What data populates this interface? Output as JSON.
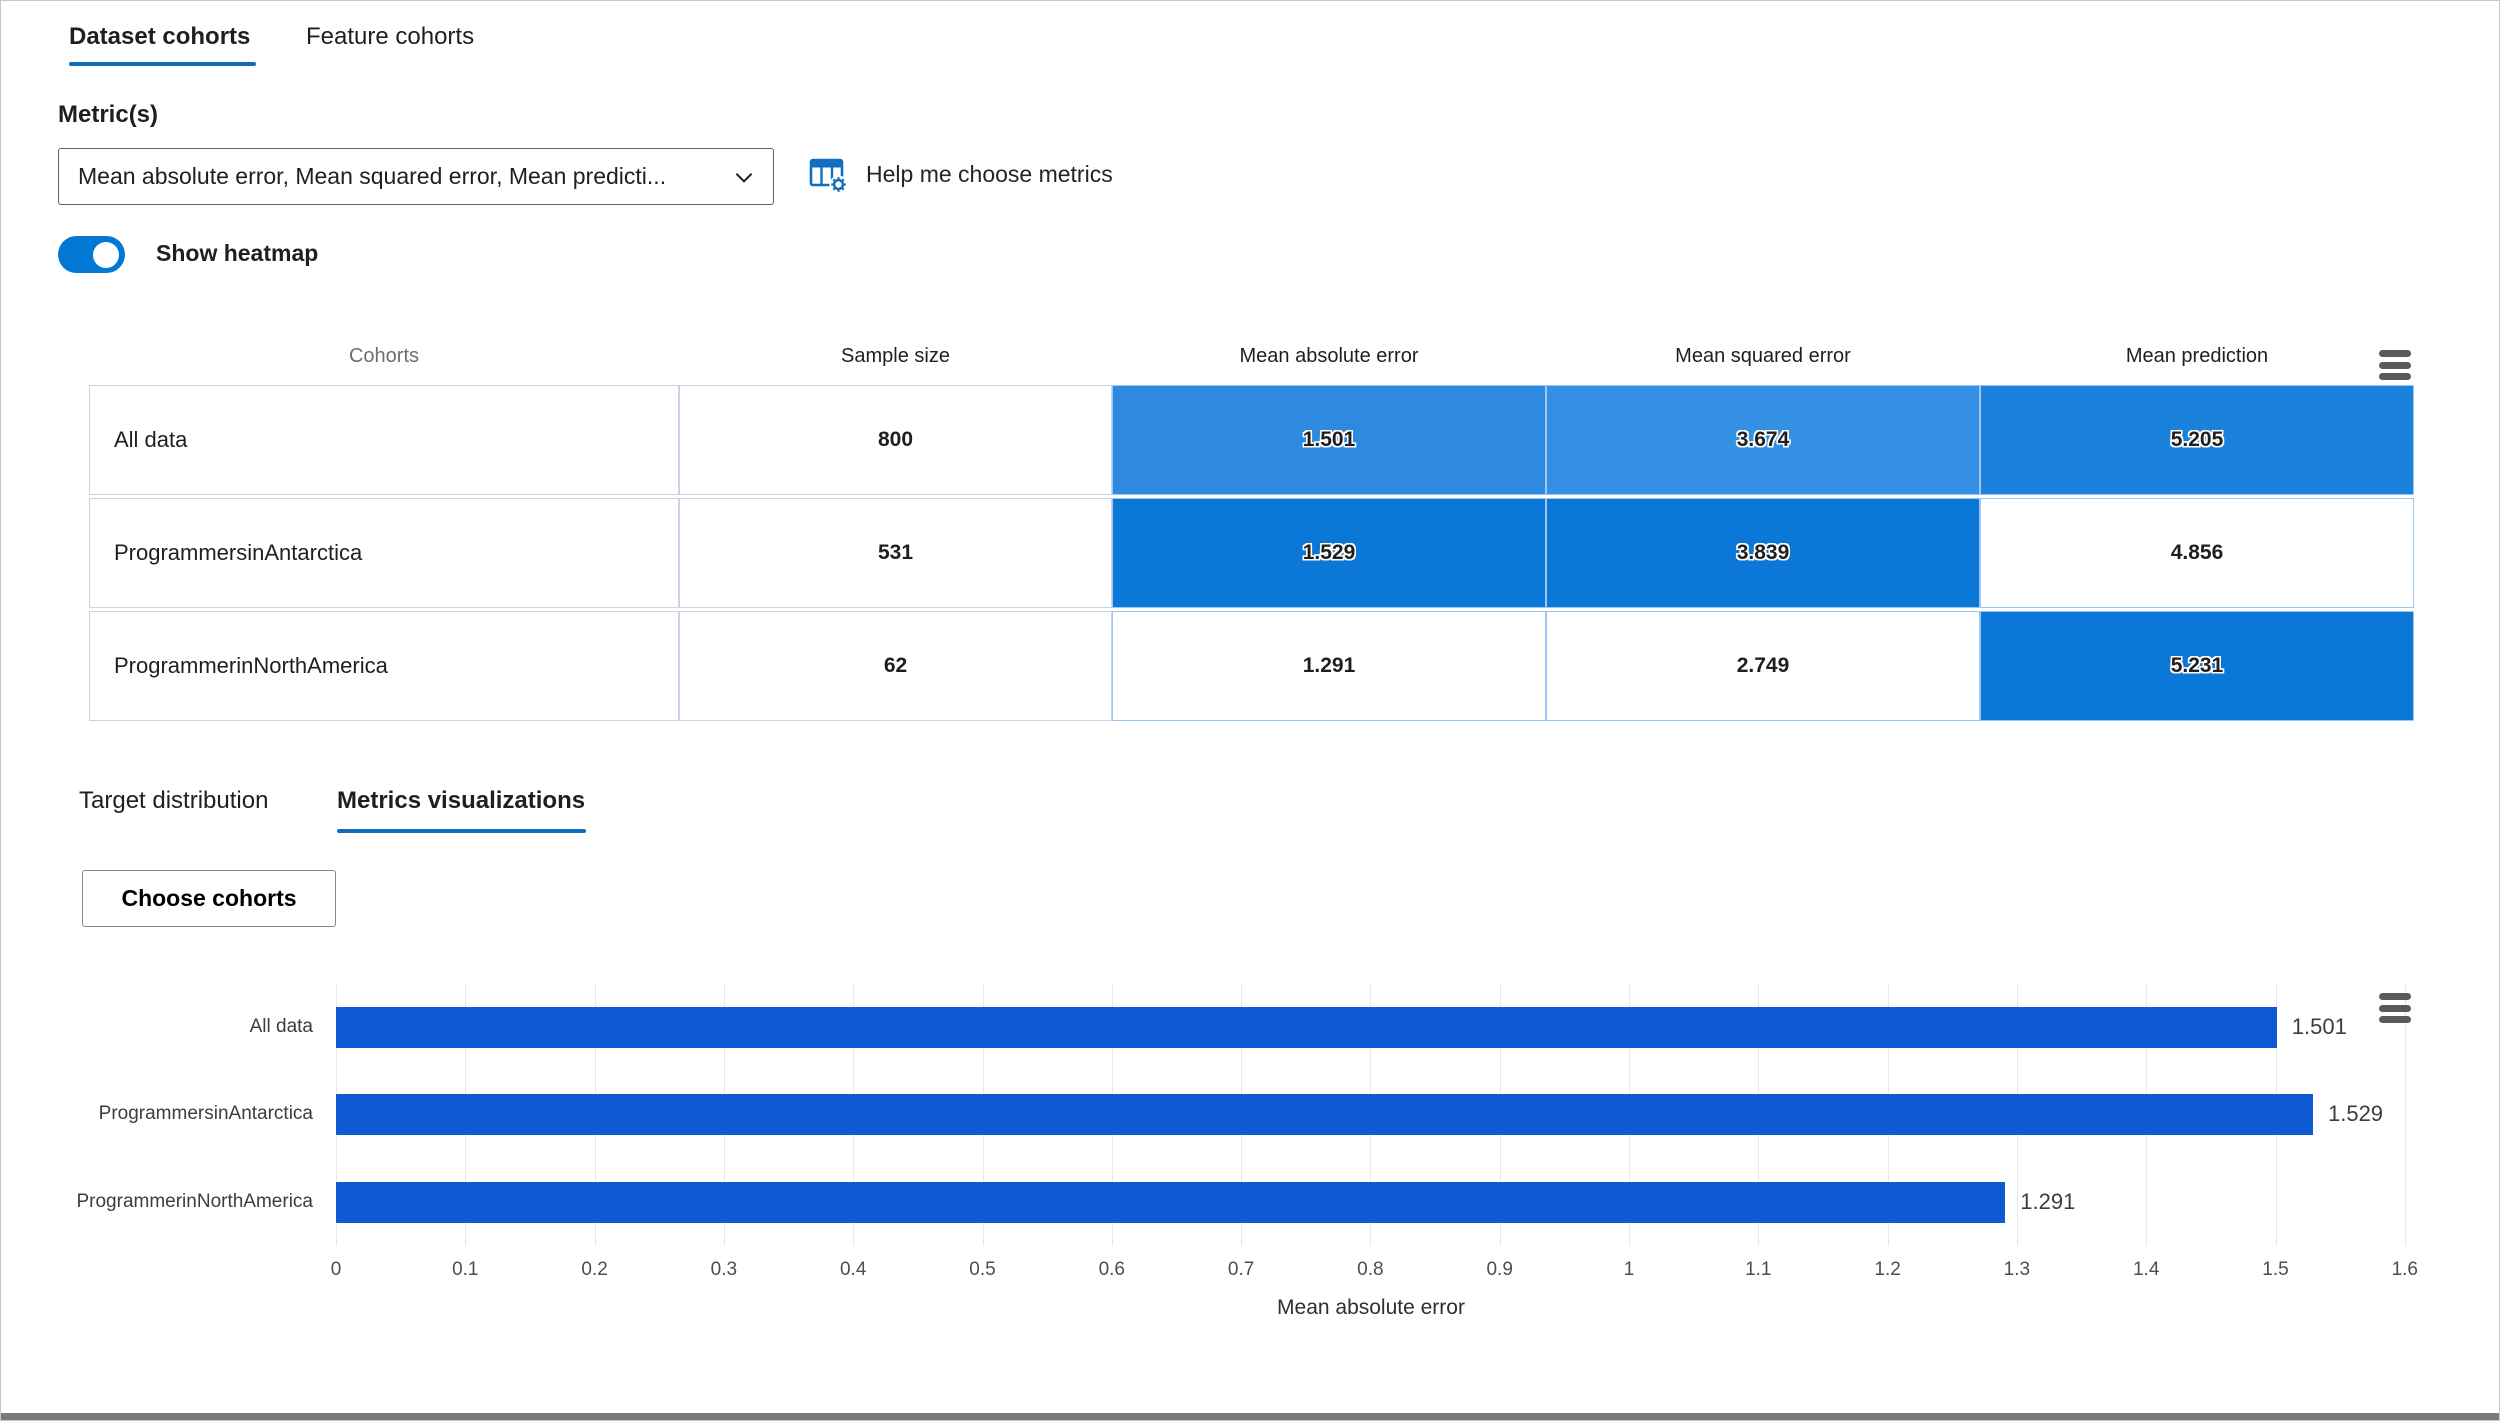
{
  "tabs_top": {
    "items": [
      {
        "label": "Dataset cohorts",
        "active": true
      },
      {
        "label": "Feature cohorts",
        "active": false
      }
    ]
  },
  "metrics": {
    "label": "Metric(s)",
    "value": "Mean absolute error, Mean squared error, Mean predicti...",
    "help_label": "Help me choose metrics"
  },
  "heatmap_toggle": {
    "label": "Show heatmap",
    "on": true
  },
  "table": {
    "columns": [
      "Cohorts",
      "Sample size",
      "Mean absolute error",
      "Mean squared error",
      "Mean prediction"
    ],
    "rows": [
      {
        "cohort": "All data",
        "sample_size": "800",
        "metrics": [
          {
            "value": "1.501",
            "bg": "#2d8ae0"
          },
          {
            "value": "3.674",
            "bg": "#3390e3"
          },
          {
            "value": "5.205",
            "bg": "#1a81dc"
          }
        ]
      },
      {
        "cohort": "ProgrammersinAntarctica",
        "sample_size": "531",
        "metrics": [
          {
            "value": "1.529",
            "bg": "#0b77d7"
          },
          {
            "value": "3.839",
            "bg": "#0b77d7"
          },
          {
            "value": "4.856",
            "bg": null
          }
        ]
      },
      {
        "cohort": "ProgrammerinNorthAmerica",
        "sample_size": "62",
        "metrics": [
          {
            "value": "1.291",
            "bg": null
          },
          {
            "value": "2.749",
            "bg": null
          },
          {
            "value": "5.231",
            "bg": "#0b77d7"
          }
        ]
      }
    ]
  },
  "tabs_bottom": {
    "items": [
      {
        "label": "Target distribution",
        "active": false
      },
      {
        "label": "Metrics visualizations",
        "active": true
      }
    ]
  },
  "controls": {
    "choose_cohorts": "Choose cohorts"
  },
  "chart_data": {
    "type": "bar",
    "orientation": "horizontal",
    "categories": [
      "All data",
      "ProgrammersinAntarctica",
      "ProgrammerinNorthAmerica"
    ],
    "values": [
      1.501,
      1.529,
      1.291
    ],
    "value_labels": [
      "1.501",
      "1.529",
      "1.291"
    ],
    "title": "",
    "xlabel": "Mean absolute error",
    "ylabel": "",
    "xlim": [
      0,
      1.6
    ],
    "xticks": [
      0,
      0.1,
      0.2,
      0.3,
      0.4,
      0.5,
      0.6,
      0.7,
      0.8,
      0.9,
      1,
      1.1,
      1.2,
      1.3,
      1.4,
      1.5,
      1.6
    ],
    "grid": true,
    "legend": null,
    "bar_color": "#0d5ad3"
  },
  "colors": {
    "accent_underline": "#0f6cbd",
    "toggle_on": "#0078d4",
    "heat_strong": "#0b77d7",
    "menu_icon": "#5a5a5a",
    "help_icon": "#106ebe"
  },
  "icons": {
    "dropdown": "chevron-down",
    "help": "table-gear",
    "table_menu": "hamburger",
    "chart_menu": "hamburger"
  }
}
